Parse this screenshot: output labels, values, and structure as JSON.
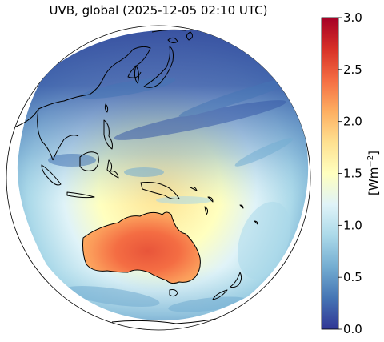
{
  "title": "UVB, global (2025-12-05 02:10 UTC)",
  "colorbar": {
    "label": "[Wm",
    "label_sup": "−2",
    "label_close": "]",
    "min": 0.0,
    "max": 3.0,
    "ticks": [
      {
        "value": 0.0,
        "label": "0.0"
      },
      {
        "value": 0.5,
        "label": "0.5"
      },
      {
        "value": 1.0,
        "label": "1.0"
      },
      {
        "value": 1.5,
        "label": "1.5"
      },
      {
        "value": 2.0,
        "label": "2.0"
      },
      {
        "value": 2.5,
        "label": "2.5"
      },
      {
        "value": 3.0,
        "label": "3.0"
      }
    ],
    "colormap": "RdYlBu_r",
    "colors": [
      "#313695",
      "#4575b4",
      "#74add1",
      "#abd9e9",
      "#e0f3f8",
      "#ffffbf",
      "#fee090",
      "#fdae61",
      "#f46d43",
      "#d73027",
      "#a50026"
    ]
  },
  "map": {
    "projection": "orthographic",
    "region": "Asia-Pacific / Australia",
    "coastline_color": "#000000",
    "ocean_background": "#3f6fb5"
  }
}
